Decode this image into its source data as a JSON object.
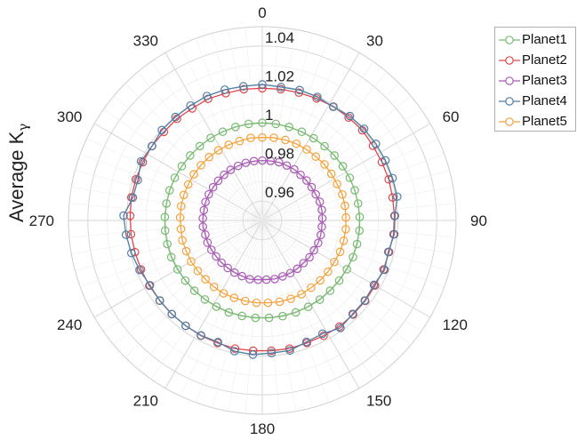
{
  "chart_data": {
    "type": "polar-line",
    "ylabel_main": "Average  K",
    "ylabel_sub": "γ",
    "r_lim": [
      0.95,
      1.05
    ],
    "r_ticks": [
      0.96,
      0.98,
      1,
      1.02,
      1.04
    ],
    "r_tick_labels": [
      "0.96",
      "0.98",
      "1",
      "1.02",
      "1.04"
    ],
    "theta_ticks": [
      0,
      30,
      60,
      90,
      120,
      150,
      180,
      210,
      240,
      270,
      300,
      330
    ],
    "theta_tick_labels": [
      "0",
      "30",
      "60",
      "90",
      "120",
      "150",
      "180",
      "210",
      "240",
      "270",
      "300",
      "330"
    ],
    "theta_zero": "top",
    "theta_direction": "clockwise",
    "grid": true,
    "legend_position": "top-right",
    "theta": [
      0,
      8,
      16,
      24,
      32,
      40,
      48,
      56,
      64,
      72,
      80,
      88,
      96,
      104,
      112,
      120,
      128,
      136,
      144,
      152,
      160,
      168,
      176,
      184,
      192,
      200,
      208,
      216,
      224,
      232,
      240,
      248,
      256,
      264,
      272,
      280,
      288,
      296,
      304,
      312,
      320,
      328,
      336,
      344,
      352
    ],
    "series": [
      {
        "name": "Planet1",
        "color": "#77bb6f",
        "r": [
          1.0004,
          1.0003,
          1.0002,
          1.0001,
          1.0,
          1.0,
          1.0001,
          1.0001,
          1.0002,
          1.0002,
          1.0002,
          1.0003,
          1.0004,
          1.0004,
          1.0005,
          1.0004,
          1.0004,
          1.0004,
          1.0005,
          1.0005,
          1.0005,
          1.0005,
          1.0004,
          1.0004,
          1.0004,
          1.0005,
          1.0004,
          1.0004,
          1.0004,
          1.0004,
          1.0005,
          1.0006,
          1.0005,
          1.0004,
          1.0003,
          1.0002,
          1.0003,
          1.0002,
          1.0001,
          1.0001,
          1.0001,
          1.0002,
          1.0001,
          1.0002,
          1.0003
        ]
      },
      {
        "name": "Planet2",
        "color": "#e0474c",
        "r": [
          1.0182,
          1.0184,
          1.0186,
          1.0189,
          1.0193,
          1.0193,
          1.0195,
          1.0189,
          1.0187,
          1.0186,
          1.0183,
          1.0182,
          1.0181,
          1.0174,
          1.0175,
          1.0172,
          1.0174,
          1.0175,
          1.0177,
          1.0174,
          1.0173,
          1.0176,
          1.0174,
          1.0174,
          1.0176,
          1.0173,
          1.0174,
          1.0172,
          1.0172,
          1.0171,
          1.0173,
          1.0175,
          1.0177,
          1.0181,
          1.0182,
          1.0186,
          1.0186,
          1.0186,
          1.0187,
          1.0183,
          1.0185,
          1.0182,
          1.0187,
          1.0183,
          1.0184
        ]
      },
      {
        "name": "Planet3",
        "color": "#a95bb5",
        "r": [
          0.9809,
          0.981,
          0.9812,
          0.981,
          0.9811,
          0.9807,
          0.9808,
          0.9807,
          0.9807,
          0.9812,
          0.9812,
          0.981,
          0.9809,
          0.9811,
          0.9811,
          0.9808,
          0.9809,
          0.9806,
          0.9808,
          0.9808,
          0.9807,
          0.9809,
          0.9806,
          0.9807,
          0.981,
          0.9806,
          0.9805,
          0.9803,
          0.9803,
          0.9802,
          0.9803,
          0.9805,
          0.9803,
          0.9808,
          0.9807,
          0.9806,
          0.9808,
          0.9807,
          0.9806,
          0.9806,
          0.9807,
          0.9808,
          0.9808,
          0.9809,
          0.9809
        ]
      },
      {
        "name": "Planet5",
        "color": "#f4a23c",
        "r": [
          0.9928,
          0.9931,
          0.9932,
          0.9933,
          0.9932,
          0.993,
          0.9932,
          0.993,
          0.9929,
          0.9934,
          0.9933,
          0.9932,
          0.9933,
          0.9933,
          0.9933,
          0.9929,
          0.993,
          0.993,
          0.9929,
          0.9931,
          0.993,
          0.9929,
          0.9926,
          0.9926,
          0.9925,
          0.9925,
          0.9926,
          0.9924,
          0.9922,
          0.9923,
          0.9924,
          0.9923,
          0.9925,
          0.9922,
          0.9924,
          0.9925,
          0.9926,
          0.9925,
          0.9926,
          0.9926,
          0.9927,
          0.9927,
          0.9927,
          0.9926,
          0.993
        ]
      },
      {
        "name": "Planet4",
        "color": "#4f7fa6",
        "r": [
          1.0202,
          1.0195,
          1.02,
          1.0198,
          1.0191,
          1.0203,
          1.0207,
          1.0207,
          1.0207,
          1.0207,
          1.0207,
          1.0185,
          1.0185,
          1.017,
          1.0181,
          1.0165,
          1.0171,
          1.0171,
          1.0186,
          1.0162,
          1.0167,
          1.0186,
          1.0186,
          1.0194,
          1.019,
          1.0168,
          1.0172,
          1.0172,
          1.0172,
          1.0172,
          1.0169,
          1.0183,
          1.0196,
          1.0207,
          1.0216,
          1.0178,
          1.0175,
          1.0196,
          1.0186,
          1.0197,
          1.0197,
          1.0199,
          1.0203,
          1.0202,
          1.0199
        ]
      }
    ],
    "legend": [
      {
        "name": "Planet1",
        "color": "#77bb6f"
      },
      {
        "name": "Planet2",
        "color": "#e0474c"
      },
      {
        "name": "Planet3",
        "color": "#a95bb5"
      },
      {
        "name": "Planet4",
        "color": "#4f7fa6"
      },
      {
        "name": "Planet5",
        "color": "#f4a23c"
      }
    ]
  }
}
